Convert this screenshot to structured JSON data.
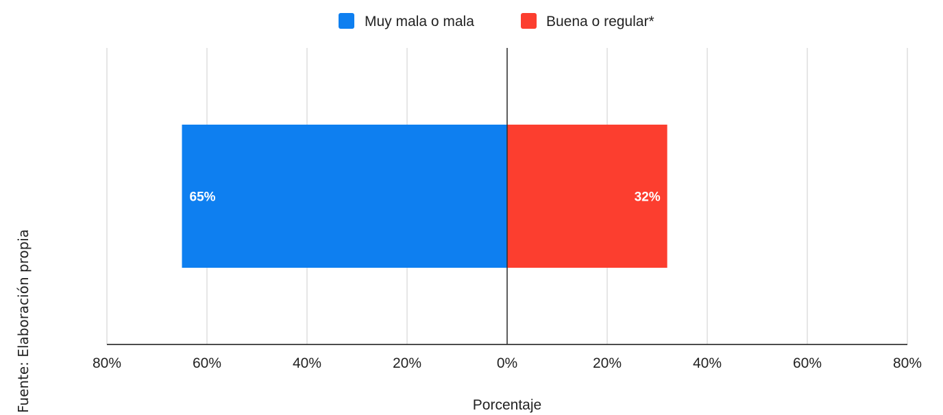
{
  "source_note": "Fuente: Elaboración propia",
  "chart_data": {
    "type": "bar",
    "orientation": "horizontal-diverging",
    "xlabel": "Porcentaje",
    "ylabel": "",
    "xlim": [
      -80,
      80
    ],
    "ticks": [
      -80,
      -60,
      -40,
      -20,
      0,
      20,
      40,
      60,
      80
    ],
    "tick_labels": [
      "80%",
      "60%",
      "40%",
      "20%",
      "0%",
      "20%",
      "40%",
      "60%",
      "80%"
    ],
    "grid": true,
    "legend_position": "top-center",
    "series": [
      {
        "name": "Muy mala o mala",
        "value": -65,
        "label": "65%",
        "color": "#0e7ff0"
      },
      {
        "name": "Buena o regular*",
        "value": 32,
        "label": "32%",
        "color": "#fc3e2f"
      }
    ]
  }
}
